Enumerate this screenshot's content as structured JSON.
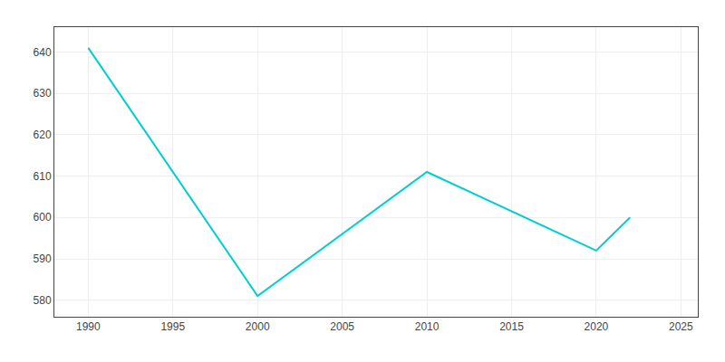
{
  "chart_data": {
    "type": "line",
    "x": [
      1990,
      2000,
      2010,
      2020,
      2021,
      2022
    ],
    "values": [
      641,
      581,
      611,
      592,
      596,
      600
    ],
    "color": "#00CED1",
    "xlim": [
      1988,
      2026
    ],
    "xticks": [
      1990,
      1995,
      2000,
      2005,
      2010,
      2015,
      2020,
      2025
    ],
    "ylim": [
      576,
      646
    ],
    "yticks": [
      580,
      590,
      600,
      610,
      620,
      630,
      640
    ],
    "grid": true
  }
}
